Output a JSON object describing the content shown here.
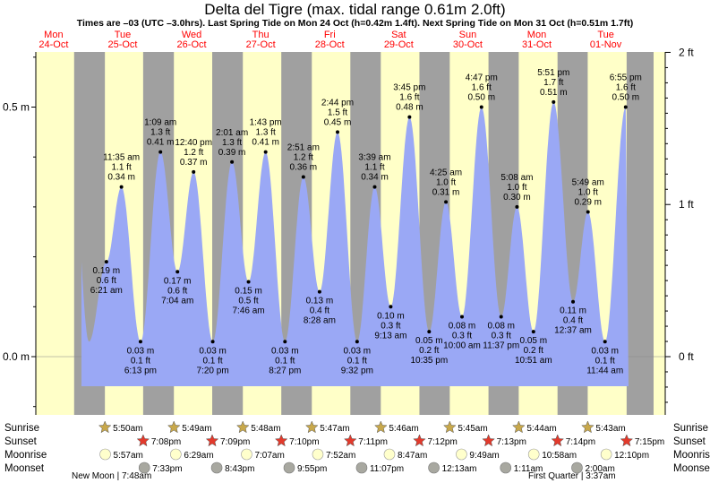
{
  "title": "Delta del Tigre (max. tidal range 0.61m 2.0ft)",
  "subtitle": "Times are –03 (UTC –3.0hrs). Last Spring Tide on Mon 24 Oct (h=0.42m 1.4ft). Next Spring Tide on Mon 31 Oct (h=0.51m 1.7ft)",
  "colors": {
    "day": "#ffffc8",
    "night": "#a0a0a0",
    "water": "#9aa8f5",
    "day_label": "#ff0000",
    "sun_star": "#c8a84b",
    "sunset_star": "#e23a2c",
    "moonrise": "#ffffcc",
    "moonset": "#a8a8a0"
  },
  "chart_data": {
    "type": "area",
    "title": "Delta del Tigre (max. tidal range 0.61m 2.0ft)",
    "x_unit": "hours from Mon 24-Oct 00:00 (UTC-3)",
    "y_left_label": "m",
    "y_right_label": "ft",
    "ylim_m": [
      -0.12,
      0.61
    ],
    "y_ticks_left": [
      {
        "v": 0.0,
        "label": "0.0 m"
      },
      {
        "v": 0.5,
        "label": "0.5 m"
      }
    ],
    "y_ticks_right": [
      {
        "v_ft": 0,
        "label": "0 ft"
      },
      {
        "v_ft": 1,
        "label": "1 ft"
      },
      {
        "v_ft": 2,
        "label": "2 ft"
      }
    ],
    "days": [
      {
        "dow": "Mon",
        "date": "24-Oct"
      },
      {
        "dow": "Tue",
        "date": "25-Oct"
      },
      {
        "dow": "Wed",
        "date": "26-Oct"
      },
      {
        "dow": "Thu",
        "date": "27-Oct"
      },
      {
        "dow": "Fri",
        "date": "28-Oct"
      },
      {
        "dow": "Sat",
        "date": "29-Oct"
      },
      {
        "dow": "Sun",
        "date": "30-Oct"
      },
      {
        "dow": "Mon",
        "date": "31-Oct"
      },
      {
        "dow": "Tue",
        "date": "01-Nov"
      }
    ],
    "tides": [
      {
        "t": 30.35,
        "h": 0.19,
        "m": "0.19 m",
        "ft": "0.6 ft",
        "time": "6:21 am",
        "type": "low"
      },
      {
        "t": 35.58,
        "h": 0.34,
        "m": "0.34 m",
        "ft": "1.1 ft",
        "time": "11:35 am",
        "type": "high"
      },
      {
        "t": 42.22,
        "h": 0.03,
        "m": "0.03 m",
        "ft": "0.1 ft",
        "time": "6:13 pm",
        "type": "low"
      },
      {
        "t": 49.15,
        "h": 0.41,
        "m": "0.41 m",
        "ft": "1.3 ft",
        "time": "1:09 am",
        "type": "high"
      },
      {
        "t": 55.07,
        "h": 0.17,
        "m": "0.17 m",
        "ft": "0.6 ft",
        "time": "7:04 am",
        "type": "low"
      },
      {
        "t": 60.67,
        "h": 0.37,
        "m": "0.37 m",
        "ft": "1.2 ft",
        "time": "12:40 pm",
        "type": "high"
      },
      {
        "t": 67.33,
        "h": 0.03,
        "m": "0.03 m",
        "ft": "0.1 ft",
        "time": "7:20 pm",
        "type": "low"
      },
      {
        "t": 74.02,
        "h": 0.39,
        "m": "0.39 m",
        "ft": "1.3 ft",
        "time": "2:01 am",
        "type": "high"
      },
      {
        "t": 79.77,
        "h": 0.15,
        "m": "0.15 m",
        "ft": "0.5 ft",
        "time": "7:46 am",
        "type": "low"
      },
      {
        "t": 85.72,
        "h": 0.41,
        "m": "0.41 m",
        "ft": "1.3 ft",
        "time": "1:43 pm",
        "type": "high"
      },
      {
        "t": 92.45,
        "h": 0.03,
        "m": "0.03 m",
        "ft": "0.1 ft",
        "time": "8:27 pm",
        "type": "low"
      },
      {
        "t": 98.85,
        "h": 0.36,
        "m": "0.36 m",
        "ft": "1.2 ft",
        "time": "2:51 am",
        "type": "high"
      },
      {
        "t": 104.47,
        "h": 0.13,
        "m": "0.13 m",
        "ft": "0.4 ft",
        "time": "8:28 am",
        "type": "low"
      },
      {
        "t": 110.73,
        "h": 0.45,
        "m": "0.45 m",
        "ft": "1.5 ft",
        "time": "2:44 pm",
        "type": "high"
      },
      {
        "t": 117.53,
        "h": 0.03,
        "m": "0.03 m",
        "ft": "0.1 ft",
        "time": "9:32 pm",
        "type": "low"
      },
      {
        "t": 123.65,
        "h": 0.34,
        "m": "0.34 m",
        "ft": "1.1 ft",
        "time": "3:39 am",
        "type": "high"
      },
      {
        "t": 129.22,
        "h": 0.1,
        "m": "0.10 m",
        "ft": "0.3 ft",
        "time": "9:13 am",
        "type": "low"
      },
      {
        "t": 135.75,
        "h": 0.48,
        "m": "0.48 m",
        "ft": "1.6 ft",
        "time": "3:45 pm",
        "type": "high"
      },
      {
        "t": 142.58,
        "h": 0.05,
        "m": "0.05 m",
        "ft": "0.2 ft",
        "time": "10:35 pm",
        "type": "low"
      },
      {
        "t": 148.42,
        "h": 0.31,
        "m": "0.31 m",
        "ft": "1.0 ft",
        "time": "4:25 am",
        "type": "high"
      },
      {
        "t": 154.0,
        "h": 0.08,
        "m": "0.08 m",
        "ft": "0.3 ft",
        "time": "10:00 am",
        "type": "low"
      },
      {
        "t": 160.78,
        "h": 0.5,
        "m": "0.50 m",
        "ft": "1.6 ft",
        "time": "4:47 pm",
        "type": "high"
      },
      {
        "t": 167.62,
        "h": 0.08,
        "m": "0.08 m",
        "ft": "0.3 ft",
        "time": "11:37 pm",
        "type": "low"
      },
      {
        "t": 173.13,
        "h": 0.3,
        "m": "0.30 m",
        "ft": "1.0 ft",
        "time": "5:08 am",
        "type": "high"
      },
      {
        "t": 178.85,
        "h": 0.05,
        "m": "0.05 m",
        "ft": "0.2 ft",
        "time": "10:51 am",
        "type": "low"
      },
      {
        "t": 185.85,
        "h": 0.51,
        "m": "0.51 m",
        "ft": "1.7 ft",
        "time": "5:51 pm",
        "type": "high"
      },
      {
        "t": 192.62,
        "h": 0.11,
        "m": "0.11 m",
        "ft": "0.4 ft",
        "time": "12:37 am",
        "type": "low"
      },
      {
        "t": 197.82,
        "h": 0.29,
        "m": "0.29 m",
        "ft": "1.0 ft",
        "time": "5:49 am",
        "type": "high"
      },
      {
        "t": 203.73,
        "h": 0.03,
        "m": "0.03 m",
        "ft": "0.1 ft",
        "time": "11:44 am",
        "type": "low"
      },
      {
        "t": 210.92,
        "h": 0.5,
        "m": "0.50 m",
        "ft": "1.6 ft",
        "time": "6:55 pm",
        "type": "high"
      }
    ],
    "sunrise": [
      {
        "t": 29.83,
        "label": "5:50am"
      },
      {
        "t": 53.82,
        "label": "5:49am"
      },
      {
        "t": 77.8,
        "label": "5:48am"
      },
      {
        "t": 101.78,
        "label": "5:47am"
      },
      {
        "t": 125.77,
        "label": "5:46am"
      },
      {
        "t": 149.75,
        "label": "5:45am"
      },
      {
        "t": 173.73,
        "label": "5:44am"
      },
      {
        "t": 197.72,
        "label": "5:43am"
      }
    ],
    "sunset": [
      {
        "t": 43.13,
        "label": "7:08pm"
      },
      {
        "t": 67.15,
        "label": "7:09pm"
      },
      {
        "t": 91.17,
        "label": "7:10pm"
      },
      {
        "t": 115.18,
        "label": "7:11pm"
      },
      {
        "t": 139.2,
        "label": "7:12pm"
      },
      {
        "t": 163.22,
        "label": "7:13pm"
      },
      {
        "t": 187.23,
        "label": "7:14pm"
      },
      {
        "t": 211.25,
        "label": "7:15pm"
      }
    ],
    "moonrise": [
      {
        "t": 29.95,
        "label": "5:57am"
      },
      {
        "t": 54.48,
        "label": "6:29am"
      },
      {
        "t": 79.12,
        "label": "7:07am"
      },
      {
        "t": 103.87,
        "label": "7:52am"
      },
      {
        "t": 128.78,
        "label": "8:47am"
      },
      {
        "t": 153.82,
        "label": "9:49am"
      },
      {
        "t": 178.97,
        "label": "10:58am"
      },
      {
        "t": 204.17,
        "label": "12:10pm"
      }
    ],
    "moonset": [
      {
        "t": 43.55,
        "label": "7:33pm"
      },
      {
        "t": 68.72,
        "label": "8:43pm"
      },
      {
        "t": 93.92,
        "label": "9:55pm"
      },
      {
        "t": 119.12,
        "label": "11:07pm"
      },
      {
        "t": 144.22,
        "label": "12:13am"
      },
      {
        "t": 169.18,
        "label": "1:11am"
      },
      {
        "t": 194.0,
        "label": "2:00am"
      }
    ],
    "row_labels": [
      "Sunrise",
      "Sunset",
      "Moonrise",
      "Moonset"
    ],
    "phases": [
      {
        "label": "New Moon | 7:48am",
        "t": 7.8
      },
      {
        "label": "First Quarter | 3:37am",
        "t": 171.6
      }
    ]
  }
}
